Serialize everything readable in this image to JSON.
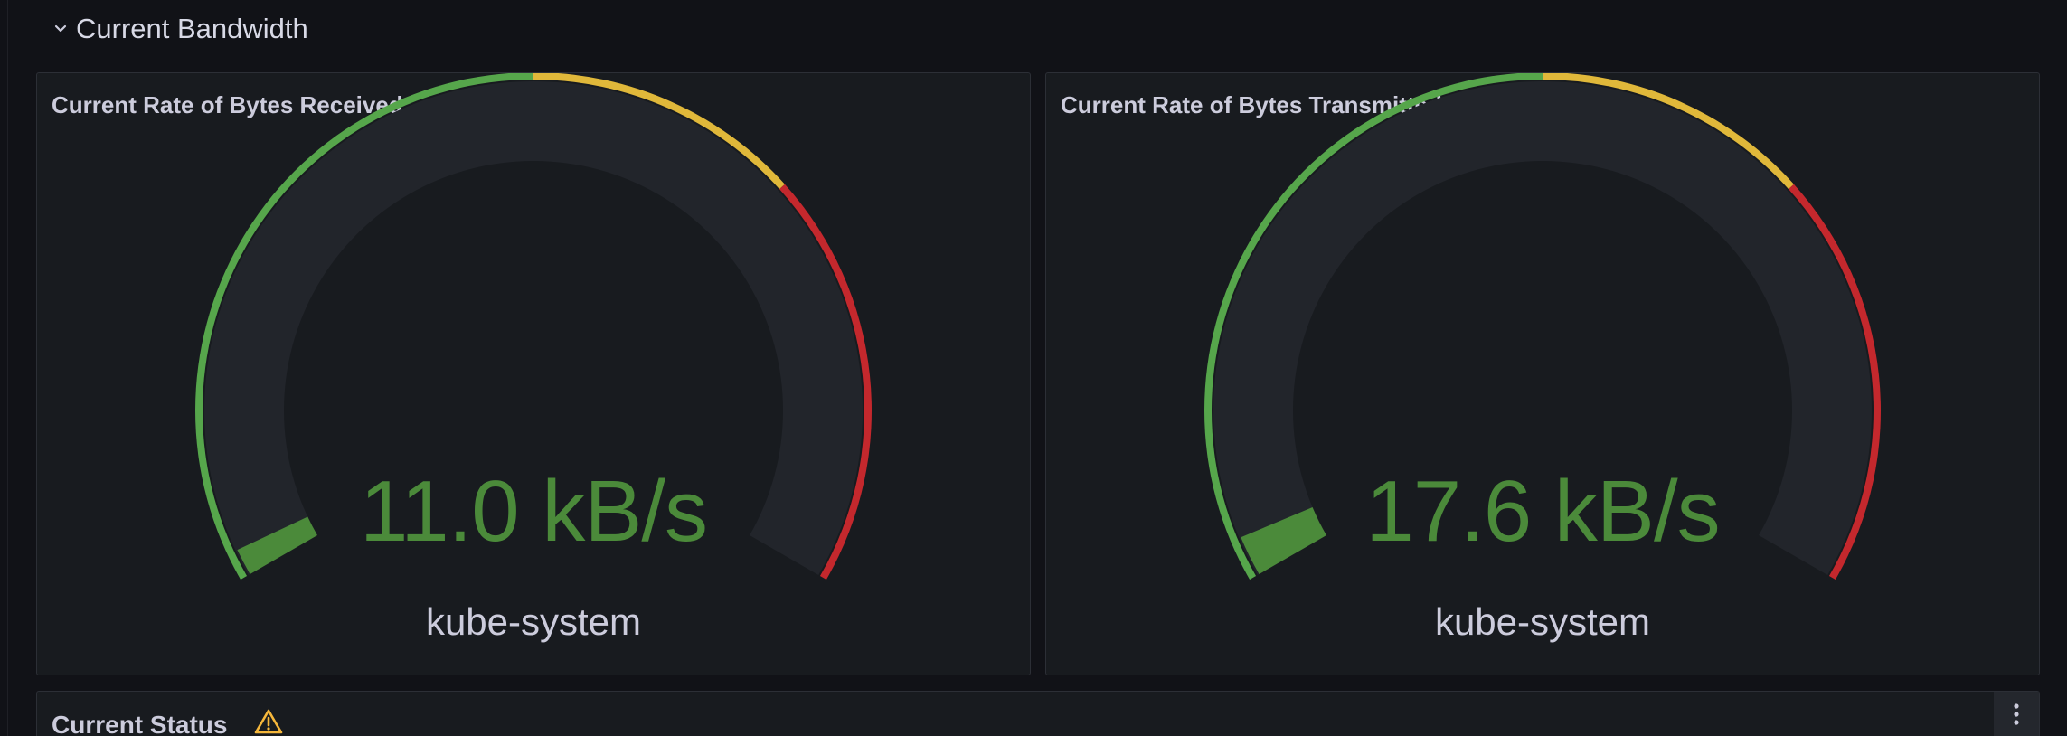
{
  "row": {
    "title": "Current Bandwidth",
    "chevron_icon": "chevron-down-icon"
  },
  "panels": [
    {
      "title": "Current Rate of Bytes Received",
      "value": "11.0 kB/s",
      "label": "kube-system",
      "fraction": 0.02
    },
    {
      "title": "Current Rate of Bytes Transmitted",
      "value": "17.6 kB/s",
      "label": "kube-system",
      "fraction": 0.03
    }
  ],
  "thresholds": [
    {
      "from": 0,
      "to": 0.5,
      "color": "#56a64b"
    },
    {
      "from": 0.5,
      "to": 0.7,
      "color": "#e0b83a"
    },
    {
      "from": 0.7,
      "to": 1,
      "color": "#c4282d"
    }
  ],
  "colors": {
    "value": "#4b8a3a",
    "track": "#22252b"
  },
  "status_panel": {
    "title": "Current Status",
    "warning_icon": "warning-icon",
    "menu_icon": "kebab-menu-icon"
  }
}
